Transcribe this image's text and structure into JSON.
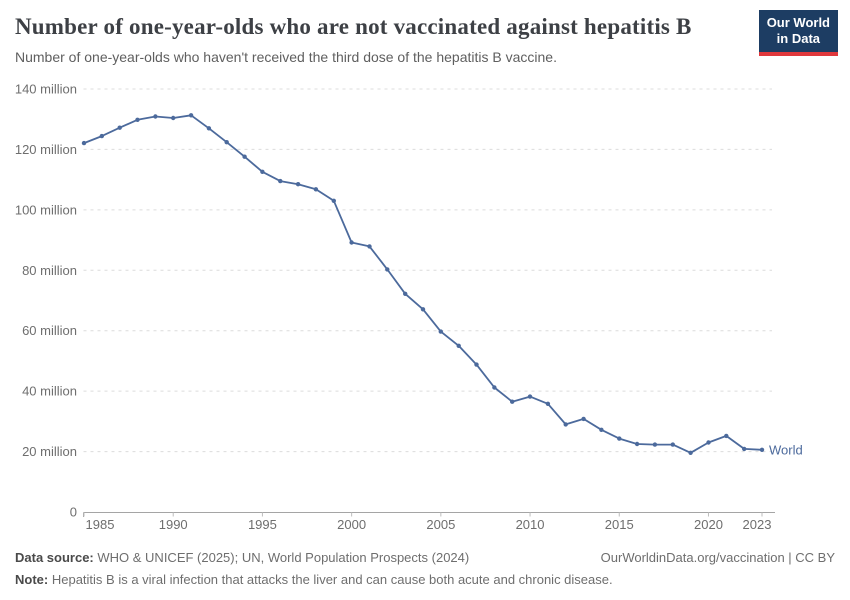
{
  "header": {
    "title": "Number of one-year-olds who are not vaccinated against hepatitis B",
    "subtitle": "Number of one-year-olds who haven't received the third dose of the hepatitis B vaccine.",
    "logo": {
      "line1": "Our World",
      "line2": "in Data"
    }
  },
  "chart_data": {
    "type": "line",
    "title": "Number of one-year-olds who are not vaccinated against hepatitis B",
    "subtitle": "Number of one-year-olds who haven't received the third dose of the hepatitis B vaccine.",
    "x": [
      1985,
      1986,
      1987,
      1988,
      1989,
      1990,
      1991,
      1992,
      1993,
      1994,
      1995,
      1996,
      1997,
      1998,
      1999,
      2000,
      2001,
      2002,
      2003,
      2004,
      2005,
      2006,
      2007,
      2008,
      2009,
      2010,
      2011,
      2012,
      2013,
      2014,
      2015,
      2016,
      2017,
      2018,
      2019,
      2020,
      2021,
      2022,
      2023
    ],
    "series": [
      {
        "name": "World",
        "color": "#4c6a9c",
        "values": [
          122.1,
          124.4,
          127.2,
          129.8,
          130.9,
          130.4,
          131.3,
          127.0,
          122.4,
          117.6,
          112.6,
          109.5,
          108.5,
          106.8,
          103.0,
          89.2,
          87.9,
          80.3,
          72.2,
          67.1,
          59.7,
          55.0,
          48.8,
          41.2,
          36.5,
          38.2,
          35.8,
          29.0,
          30.8,
          27.2,
          24.3,
          22.5,
          22.3,
          22.3,
          19.6,
          23.0,
          25.2,
          20.9,
          20.6
        ]
      }
    ],
    "values_unit": "million people",
    "x_ticks": [
      1985,
      1990,
      1995,
      2000,
      2005,
      2010,
      2015,
      2020,
      2023
    ],
    "y_ticks": [
      {
        "value": 0,
        "label": "0"
      },
      {
        "value": 20,
        "label": "20 million"
      },
      {
        "value": 40,
        "label": "40 million"
      },
      {
        "value": 60,
        "label": "60 million"
      },
      {
        "value": 80,
        "label": "80 million"
      },
      {
        "value": 100,
        "label": "100 million"
      },
      {
        "value": 120,
        "label": "120 million"
      },
      {
        "value": 140,
        "label": "140 million"
      }
    ],
    "xlim": [
      1985,
      2024
    ],
    "ylim": [
      0,
      145
    ],
    "grid": "horizontal-dashed",
    "legend": "end-of-line-label"
  },
  "footer": {
    "source_label": "Data source:",
    "source_text": "WHO & UNICEF (2025); UN, World Population Prospects (2024)",
    "note_label": "Note:",
    "note_text": "Hepatitis B is a viral infection that attacks the liver and can cause both acute and chronic disease.",
    "link": "OurWorldinData.org/vaccination | CC BY"
  },
  "colors": {
    "series_world": "#4c6a9c",
    "logo_bg": "#1d3d63",
    "logo_stripe": "#e0383c",
    "gridline": "#dcdcdc",
    "axis": "#a5a5a5",
    "tick_label": "#6e6e6e",
    "title_text": "#3d4045",
    "subtitle_text": "#5f5f5f"
  }
}
